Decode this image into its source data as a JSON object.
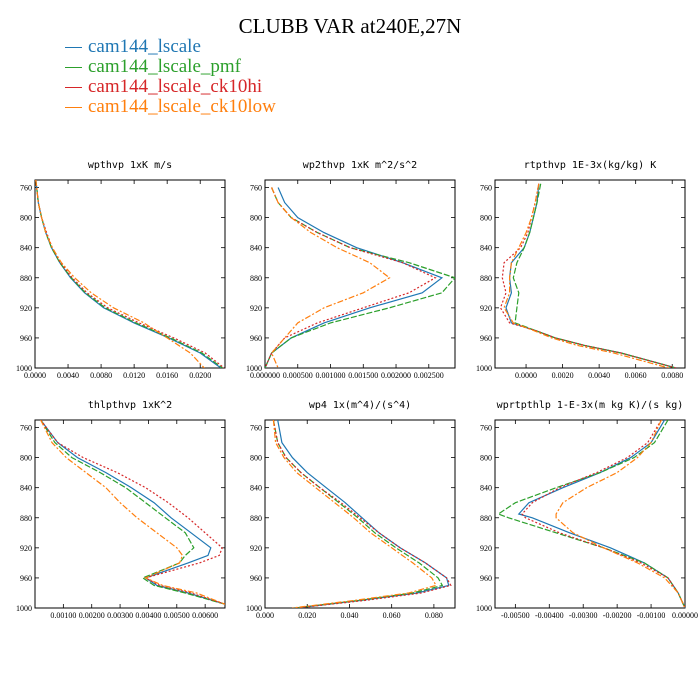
{
  "title": "CLUBB VAR at240E,27N",
  "legend": [
    {
      "label": "cam144_lscale",
      "color": "#1f77b4"
    },
    {
      "label": "cam144_lscale_pmf",
      "color": "#2ca02c"
    },
    {
      "label": "cam144_lscale_ck10hi",
      "color": "#d62728"
    },
    {
      "label": "cam144_lscale_ck10low",
      "color": "#ff7f0e"
    }
  ],
  "chart_data": [
    {
      "type": "line",
      "title": "wpthvp  1xK m/s",
      "xlim": [
        0,
        0.023
      ],
      "ylim": [
        1000,
        750
      ],
      "y_inverted": true,
      "xticks": [
        0,
        0.004,
        0.008,
        0.012,
        0.016,
        0.02
      ],
      "xticklabels": [
        "0.0000",
        "0.0040",
        "0.0080",
        "0.0120",
        "0.0160",
        "0.0200"
      ],
      "yticks": [
        760,
        800,
        840,
        880,
        920,
        960,
        1000
      ],
      "y": [
        750,
        760,
        780,
        800,
        820,
        840,
        860,
        880,
        900,
        920,
        940,
        960,
        980,
        1000
      ],
      "series": [
        {
          "name": "cam144_lscale",
          "color": "#1f77b4",
          "dash": "",
          "x": [
            0.0001,
            0.0002,
            0.0004,
            0.0008,
            0.0013,
            0.002,
            0.003,
            0.0043,
            0.006,
            0.0083,
            0.012,
            0.0162,
            0.02,
            0.0225
          ]
        },
        {
          "name": "cam144_lscale_pmf",
          "color": "#2ca02c",
          "dash": "6,2",
          "x": [
            0.0001,
            0.0002,
            0.0004,
            0.0008,
            0.0013,
            0.002,
            0.003,
            0.0044,
            0.0061,
            0.0085,
            0.0122,
            0.0164,
            0.0202,
            0.0227
          ]
        },
        {
          "name": "cam144_lscale_ck10hi",
          "color": "#d62728",
          "dash": "2,2",
          "x": [
            0.0001,
            0.0002,
            0.0004,
            0.0008,
            0.0014,
            0.0021,
            0.0031,
            0.0045,
            0.0063,
            0.0088,
            0.0126,
            0.0168,
            0.0206,
            0.0229
          ]
        },
        {
          "name": "cam144_lscale_ck10low",
          "color": "#ff7f0e",
          "dash": "6,2,2,2",
          "x": [
            0.0001,
            0.0002,
            0.0004,
            0.0008,
            0.0013,
            0.0021,
            0.0032,
            0.0048,
            0.0068,
            0.0095,
            0.0132,
            0.016,
            0.0188,
            0.0205
          ]
        }
      ]
    },
    {
      "type": "line",
      "title": "wp2thvp  1xK m^2/s^2",
      "xlim": [
        0,
        0.0029
      ],
      "ylim": [
        1000,
        750
      ],
      "y_inverted": true,
      "xticks": [
        0,
        0.0005,
        0.001,
        0.0015,
        0.002,
        0.0025
      ],
      "xticklabels": [
        "0.000000",
        "0.000500",
        "0.001000",
        "0.001500",
        "0.002000",
        "0.002500"
      ],
      "yticks": [
        760,
        800,
        840,
        880,
        920,
        960,
        1000
      ],
      "y": [
        760,
        780,
        800,
        820,
        840,
        860,
        880,
        900,
        920,
        940,
        960,
        980,
        1000
      ],
      "series": [
        {
          "name": "cam144_lscale",
          "color": "#1f77b4",
          "dash": "",
          "x": [
            0.0002,
            0.0003,
            0.0005,
            0.0009,
            0.0014,
            0.0021,
            0.0027,
            0.0024,
            0.0016,
            0.0009,
            0.0004,
            0.0001,
            0.0
          ]
        },
        {
          "name": "cam144_lscale_pmf",
          "color": "#2ca02c",
          "dash": "6,2",
          "x": [
            0.0001,
            0.0002,
            0.0004,
            0.0008,
            0.0013,
            0.0022,
            0.0029,
            0.0027,
            0.0019,
            0.001,
            0.0004,
            0.0001,
            0.0
          ]
        },
        {
          "name": "cam144_lscale_ck10hi",
          "color": "#d62728",
          "dash": "2,2",
          "x": [
            0.0001,
            0.0002,
            0.0004,
            0.0008,
            0.0013,
            0.0021,
            0.0026,
            0.0022,
            0.0015,
            0.0008,
            0.0003,
            0.0001,
            0.0
          ]
        },
        {
          "name": "cam144_lscale_ck10low",
          "color": "#ff7f0e",
          "dash": "6,2,2,2",
          "x": [
            0.0001,
            0.0002,
            0.0004,
            0.0007,
            0.0011,
            0.0016,
            0.0019,
            0.0015,
            0.0009,
            0.0005,
            0.0003,
            0.0001,
            0.0002
          ]
        }
      ]
    },
    {
      "type": "line",
      "title": "rtpthvp  1E-3x(kg/kg) K",
      "xlim": [
        -0.0017,
        0.0087
      ],
      "ylim": [
        1000,
        750
      ],
      "y_inverted": true,
      "xticks": [
        0,
        0.002,
        0.004,
        0.006,
        0.008
      ],
      "xticklabels": [
        "0.0000",
        "0.0020",
        "0.0040",
        "0.0060",
        "0.0080"
      ],
      "yticks": [
        760,
        800,
        840,
        880,
        920,
        960,
        1000
      ],
      "y": [
        755,
        780,
        800,
        820,
        840,
        860,
        880,
        900,
        920,
        940,
        950,
        960,
        970,
        980,
        1000
      ],
      "series": [
        {
          "name": "cam144_lscale",
          "color": "#1f77b4",
          "dash": "",
          "x": [
            0.0007,
            0.0006,
            0.0004,
            0.0002,
            -0.0001,
            -0.0008,
            -0.0009,
            -0.0008,
            -0.0011,
            -0.0008,
            0.0005,
            0.0016,
            0.0032,
            0.0052,
            0.0082
          ]
        },
        {
          "name": "cam144_lscale_pmf",
          "color": "#2ca02c",
          "dash": "6,2",
          "x": [
            0.0008,
            0.0006,
            0.0004,
            0.0002,
            -0.0001,
            -0.0005,
            -0.0007,
            -0.0004,
            -0.0005,
            -0.0006,
            0.0005,
            0.0016,
            0.0032,
            0.0052,
            0.0082
          ]
        },
        {
          "name": "cam144_lscale_ck10hi",
          "color": "#d62728",
          "dash": "2,2",
          "x": [
            0.0007,
            0.0005,
            0.0003,
            0.0001,
            -0.0003,
            -0.0012,
            -0.0013,
            -0.0011,
            -0.0014,
            -0.0009,
            0.0005,
            0.0016,
            0.0032,
            0.0052,
            0.0082
          ]
        },
        {
          "name": "cam144_lscale_ck10low",
          "color": "#ff7f0e",
          "dash": "6,2,2,2",
          "x": [
            0.0007,
            0.0005,
            0.0003,
            0.0,
            -0.0004,
            -0.0008,
            -0.0009,
            -0.0009,
            -0.0012,
            -0.0007,
            0.0004,
            0.0014,
            0.0028,
            0.0048,
            0.0078
          ]
        }
      ]
    },
    {
      "type": "line",
      "title": "thlpthvp  1xK^2",
      "xlim": [
        0,
        0.0067
      ],
      "ylim": [
        1000,
        750
      ],
      "y_inverted": true,
      "xticks": [
        0.001,
        0.002,
        0.003,
        0.004,
        0.005,
        0.006
      ],
      "xticklabels": [
        "0.00100",
        "0.00200",
        "0.00300",
        "0.00400",
        "0.00500",
        "0.00600"
      ],
      "yticks": [
        760,
        800,
        840,
        880,
        920,
        960,
        1000
      ],
      "y": [
        750,
        780,
        800,
        820,
        840,
        860,
        880,
        900,
        920,
        930,
        940,
        960,
        970,
        980,
        995
      ],
      "series": [
        {
          "name": "cam144_lscale",
          "color": "#1f77b4",
          "dash": "",
          "x": [
            0.0002,
            0.0008,
            0.0015,
            0.0025,
            0.0034,
            0.0042,
            0.0048,
            0.0055,
            0.0062,
            0.0061,
            0.0054,
            0.0039,
            0.0043,
            0.0054,
            0.0067
          ]
        },
        {
          "name": "cam144_lscale_pmf",
          "color": "#2ca02c",
          "dash": "6,2",
          "x": [
            0.0002,
            0.0007,
            0.0013,
            0.0023,
            0.0032,
            0.0039,
            0.0046,
            0.0053,
            0.0056,
            0.0053,
            0.0051,
            0.0038,
            0.0042,
            0.0053,
            0.0067
          ]
        },
        {
          "name": "cam144_lscale_ck10hi",
          "color": "#d62728",
          "dash": "2,2",
          "x": [
            0.0002,
            0.0008,
            0.0017,
            0.0029,
            0.0039,
            0.0047,
            0.0054,
            0.006,
            0.0066,
            0.0065,
            0.0058,
            0.0039,
            0.0044,
            0.0055,
            0.0067
          ]
        },
        {
          "name": "cam144_lscale_ck10low",
          "color": "#ff7f0e",
          "dash": "6,2,2,2",
          "x": [
            0.0002,
            0.0006,
            0.0011,
            0.0018,
            0.0025,
            0.003,
            0.0036,
            0.0043,
            0.005,
            0.0052,
            0.0051,
            0.0039,
            0.0045,
            0.0057,
            0.0067
          ]
        }
      ]
    },
    {
      "type": "line",
      "title": "wp4  1x(m^4)/(s^4)",
      "xlim": [
        0,
        0.09
      ],
      "ylim": [
        1000,
        750
      ],
      "y_inverted": true,
      "xticks": [
        0,
        0.02,
        0.04,
        0.06,
        0.08
      ],
      "xticklabels": [
        "0.000",
        "0.020",
        "0.040",
        "0.060",
        "0.080"
      ],
      "yticks": [
        760,
        800,
        840,
        880,
        920,
        960,
        1000
      ],
      "y": [
        750,
        780,
        800,
        820,
        840,
        860,
        880,
        900,
        920,
        940,
        960,
        970,
        980,
        990,
        1000
      ],
      "series": [
        {
          "name": "cam144_lscale",
          "color": "#1f77b4",
          "dash": "",
          "x": [
            0.006,
            0.008,
            0.013,
            0.02,
            0.029,
            0.038,
            0.046,
            0.054,
            0.064,
            0.076,
            0.086,
            0.087,
            0.072,
            0.045,
            0.015
          ]
        },
        {
          "name": "cam144_lscale_pmf",
          "color": "#2ca02c",
          "dash": "6,2",
          "x": [
            0.004,
            0.006,
            0.01,
            0.017,
            0.026,
            0.035,
            0.044,
            0.052,
            0.062,
            0.073,
            0.082,
            0.084,
            0.07,
            0.044,
            0.014
          ]
        },
        {
          "name": "cam144_lscale_ck10hi",
          "color": "#d62728",
          "dash": "2,2",
          "x": [
            0.004,
            0.006,
            0.01,
            0.017,
            0.026,
            0.036,
            0.045,
            0.054,
            0.064,
            0.076,
            0.086,
            0.088,
            0.074,
            0.047,
            0.015
          ]
        },
        {
          "name": "cam144_lscale_ck10low",
          "color": "#ff7f0e",
          "dash": "6,2,2,2",
          "x": [
            0.004,
            0.005,
            0.009,
            0.015,
            0.024,
            0.033,
            0.042,
            0.05,
            0.06,
            0.07,
            0.079,
            0.081,
            0.068,
            0.042,
            0.013
          ]
        }
      ]
    },
    {
      "type": "line",
      "title": "wprtpthlp  1-E-3x(m kg K)/(s kg)",
      "xlim": [
        -0.0056,
        0.0
      ],
      "ylim": [
        1000,
        750
      ],
      "y_inverted": true,
      "xticks": [
        -0.005,
        -0.004,
        -0.003,
        -0.002,
        -0.001,
        0.0
      ],
      "xticklabels": [
        "-0.00500",
        "-0.00400",
        "-0.00300",
        "-0.00200",
        "-0.00100",
        "0.00000"
      ],
      "yticks": [
        760,
        800,
        840,
        880,
        920,
        960,
        1000
      ],
      "y": [
        750,
        780,
        800,
        820,
        840,
        860,
        875,
        880,
        900,
        920,
        940,
        960,
        980,
        1000
      ],
      "series": [
        {
          "name": "cam144_lscale",
          "color": "#1f77b4",
          "dash": "",
          "x": [
            -0.0006,
            -0.001,
            -0.0016,
            -0.0025,
            -0.0036,
            -0.0046,
            -0.0049,
            -0.0045,
            -0.0034,
            -0.0022,
            -0.0012,
            -0.0005,
            -0.0002,
            0.0
          ]
        },
        {
          "name": "cam144_lscale_pmf",
          "color": "#2ca02c",
          "dash": "6,2",
          "x": [
            -0.0005,
            -0.0009,
            -0.0015,
            -0.0025,
            -0.0038,
            -0.005,
            -0.0055,
            -0.0052,
            -0.0038,
            -0.0024,
            -0.0012,
            -0.0005,
            -0.0002,
            0.0
          ]
        },
        {
          "name": "cam144_lscale_ck10hi",
          "color": "#d62728",
          "dash": "2,2",
          "x": [
            -0.0007,
            -0.0011,
            -0.0017,
            -0.0026,
            -0.0037,
            -0.0045,
            -0.0048,
            -0.0047,
            -0.0037,
            -0.0024,
            -0.0013,
            -0.0005,
            -0.0002,
            0.0
          ]
        },
        {
          "name": "cam144_lscale_ck10low",
          "color": "#ff7f0e",
          "dash": "6,2,2,2",
          "x": [
            -0.0007,
            -0.001,
            -0.0014,
            -0.002,
            -0.0029,
            -0.0036,
            -0.0038,
            -0.0038,
            -0.0033,
            -0.0024,
            -0.0014,
            -0.0006,
            -0.0002,
            0.0
          ]
        }
      ]
    }
  ]
}
